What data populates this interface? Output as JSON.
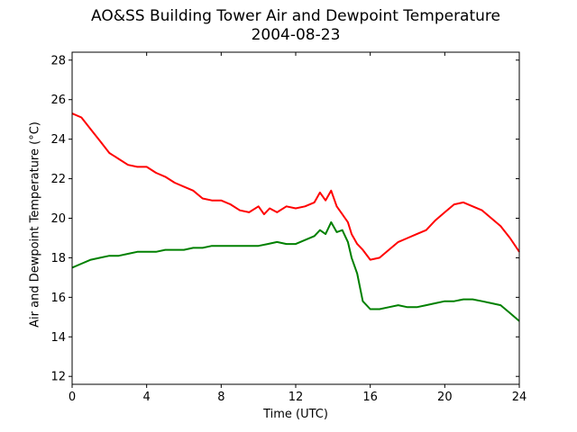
{
  "chart_data": {
    "type": "line",
    "title": "AO&SS Building Tower Air and Dewpoint Temperature",
    "subtitle": "2004-08-23",
    "xlabel": "Time (UTC)",
    "ylabel": "Air and Dewpoint Temperature (°C)",
    "xlim": [
      0,
      24
    ],
    "ylim": [
      11.6,
      28.4
    ],
    "xticks": [
      0,
      4,
      8,
      12,
      16,
      20,
      24
    ],
    "yticks": [
      12,
      14,
      16,
      18,
      20,
      22,
      24,
      26,
      28
    ],
    "grid": false,
    "legend": "none",
    "series": [
      {
        "color": "#ff0000",
        "x": [
          0,
          0.5,
          1,
          1.5,
          2,
          2.5,
          3,
          3.5,
          4,
          4.5,
          5,
          5.5,
          6,
          6.5,
          7,
          7.5,
          8,
          8.5,
          9,
          9.5,
          10,
          10.3,
          10.6,
          11,
          11.5,
          12,
          12.5,
          13,
          13.3,
          13.6,
          13.9,
          14.2,
          14.5,
          14.8,
          15,
          15.3,
          15.6,
          16,
          16.5,
          17,
          17.5,
          18,
          18.5,
          19,
          19.5,
          20,
          20.5,
          21,
          21.5,
          22,
          22.5,
          23,
          23.5,
          24
        ],
        "values": [
          25.3,
          25.1,
          24.5,
          23.9,
          23.3,
          23.0,
          22.7,
          22.6,
          22.6,
          22.3,
          22.1,
          21.8,
          21.6,
          21.4,
          21.0,
          20.9,
          20.9,
          20.7,
          20.4,
          20.3,
          20.6,
          20.2,
          20.5,
          20.3,
          20.6,
          20.5,
          20.6,
          20.8,
          21.3,
          20.9,
          21.4,
          20.6,
          20.2,
          19.8,
          19.2,
          18.7,
          18.4,
          17.9,
          18.0,
          18.4,
          18.8,
          19.0,
          19.2,
          19.4,
          19.9,
          20.3,
          20.7,
          20.8,
          20.6,
          20.4,
          20.0,
          19.6,
          19.0,
          18.3
        ]
      },
      {
        "color": "#008000",
        "x": [
          0,
          0.5,
          1,
          1.5,
          2,
          2.5,
          3,
          3.5,
          4,
          4.5,
          5,
          5.5,
          6,
          6.5,
          7,
          7.5,
          8,
          8.5,
          9,
          9.5,
          10,
          10.5,
          11,
          11.5,
          12,
          12.5,
          13,
          13.3,
          13.6,
          13.9,
          14.2,
          14.5,
          14.8,
          15,
          15.3,
          15.6,
          16,
          16.5,
          17,
          17.5,
          18,
          18.5,
          19,
          19.5,
          20,
          20.5,
          21,
          21.5,
          22,
          22.5,
          23,
          23.5,
          24
        ],
        "values": [
          17.5,
          17.7,
          17.9,
          18.0,
          18.1,
          18.1,
          18.2,
          18.3,
          18.3,
          18.3,
          18.4,
          18.4,
          18.4,
          18.5,
          18.5,
          18.6,
          18.6,
          18.6,
          18.6,
          18.6,
          18.6,
          18.7,
          18.8,
          18.7,
          18.7,
          18.9,
          19.1,
          19.4,
          19.2,
          19.8,
          19.3,
          19.4,
          18.8,
          18.0,
          17.2,
          15.8,
          15.4,
          15.4,
          15.5,
          15.6,
          15.5,
          15.5,
          15.6,
          15.7,
          15.8,
          15.8,
          15.9,
          15.9,
          15.8,
          15.7,
          15.6,
          15.2,
          14.8
        ]
      }
    ]
  }
}
